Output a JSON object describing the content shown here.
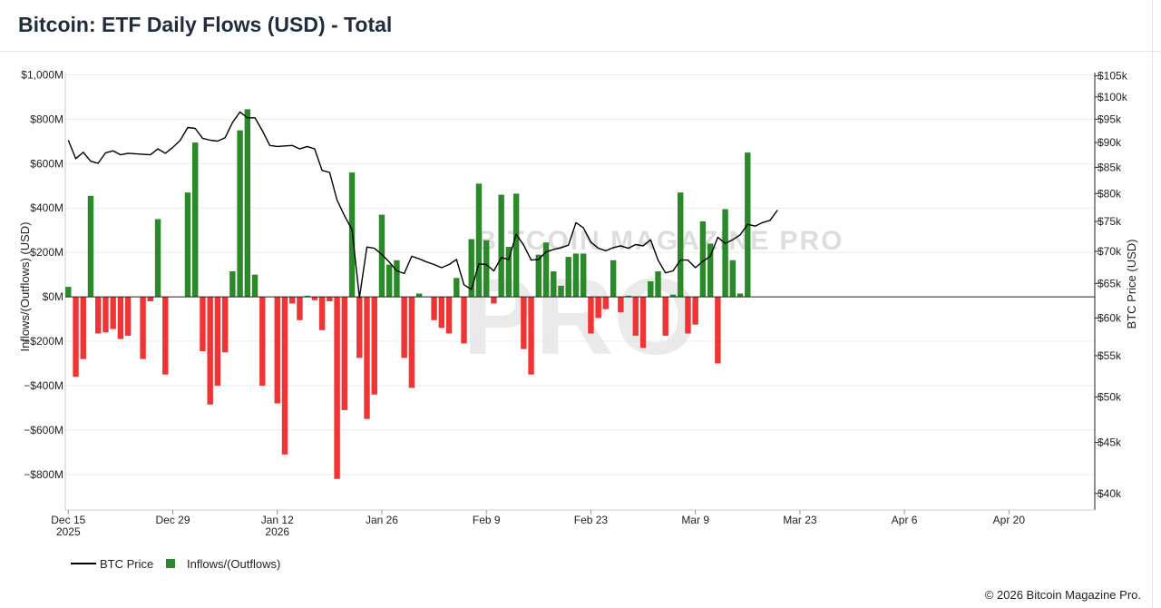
{
  "title": "Bitcoin: ETF Daily Flows (USD) - Total",
  "copyright": "© 2026 Bitcoin Magazine Pro.",
  "watermark": "BITCOIN MAGAZINE PRO",
  "colors": {
    "inflow": "#2a8a2a",
    "outflow": "#ee3434",
    "price": "#000000",
    "grid": "#ebebeb"
  },
  "chart_data": {
    "type": "bar",
    "title": "Bitcoin: ETF Daily Flows (USD) - Total",
    "ylabel": "Inflows/(Outflows) (USD)",
    "y2label": "BTC Price (USD)",
    "ylim": [
      -960,
      1010
    ],
    "y2lim": [
      38500,
      105800
    ],
    "xlim_days": [
      -0.4,
      137.5
    ],
    "yticks": [
      {
        "v": 1000,
        "label": "$1,000M"
      },
      {
        "v": 800,
        "label": "$800M"
      },
      {
        "v": 600,
        "label": "$600M"
      },
      {
        "v": 400,
        "label": "$400M"
      },
      {
        "v": 200,
        "label": "$200M"
      },
      {
        "v": 0,
        "label": "$0M"
      },
      {
        "v": -200,
        "label": "−$200M"
      },
      {
        "v": -400,
        "label": "−$400M"
      },
      {
        "v": -600,
        "label": "−$600M"
      },
      {
        "v": -800,
        "label": "−$800M"
      }
    ],
    "y2ticks": [
      {
        "v": 105000,
        "label": "$105k"
      },
      {
        "v": 100000,
        "label": "$100k"
      },
      {
        "v": 95000,
        "label": "$95k"
      },
      {
        "v": 90000,
        "label": "$90k"
      },
      {
        "v": 85000,
        "label": "$85k"
      },
      {
        "v": 80000,
        "label": "$80k"
      },
      {
        "v": 75000,
        "label": "$75k"
      },
      {
        "v": 70000,
        "label": "$70k"
      },
      {
        "v": 65000,
        "label": "$65k"
      },
      {
        "v": 60000,
        "label": "$60k"
      },
      {
        "v": 55000,
        "label": "$55k"
      },
      {
        "v": 50000,
        "label": "$50k"
      },
      {
        "v": 45000,
        "label": "$45k"
      },
      {
        "v": 40000,
        "label": "$40k"
      }
    ],
    "xticks": [
      {
        "d": 0,
        "line1": "Dec 15",
        "line2": "2025"
      },
      {
        "d": 14,
        "line1": "Dec 29",
        "line2": ""
      },
      {
        "d": 28,
        "line1": "Jan 12",
        "line2": "2026"
      },
      {
        "d": 42,
        "line1": "Jan 26",
        "line2": ""
      },
      {
        "d": 56,
        "line1": "Feb 9",
        "line2": ""
      },
      {
        "d": 70,
        "line1": "Feb 23",
        "line2": ""
      },
      {
        "d": 84,
        "line1": "Mar 9",
        "line2": ""
      },
      {
        "d": 98,
        "line1": "Mar 23",
        "line2": ""
      },
      {
        "d": 112,
        "line1": "Apr 6",
        "line2": ""
      },
      {
        "d": 126,
        "line1": "Apr 20",
        "line2": ""
      }
    ],
    "flows": [
      {
        "d": 0,
        "v": 45
      },
      {
        "d": 1,
        "v": -360
      },
      {
        "d": 2,
        "v": -280
      },
      {
        "d": 3,
        "v": 455
      },
      {
        "d": 4,
        "v": -165
      },
      {
        "d": 5,
        "v": -160
      },
      {
        "d": 6,
        "v": -145
      },
      {
        "d": 7,
        "v": -190
      },
      {
        "d": 8,
        "v": -175
      },
      {
        "d": 10,
        "v": -280
      },
      {
        "d": 11,
        "v": -20
      },
      {
        "d": 12,
        "v": 350
      },
      {
        "d": 13,
        "v": -350
      },
      {
        "d": 16,
        "v": 470
      },
      {
        "d": 17,
        "v": 695
      },
      {
        "d": 18,
        "v": -245
      },
      {
        "d": 19,
        "v": -485
      },
      {
        "d": 20,
        "v": -400
      },
      {
        "d": 21,
        "v": -250
      },
      {
        "d": 22,
        "v": 115
      },
      {
        "d": 23,
        "v": 750
      },
      {
        "d": 24,
        "v": 845
      },
      {
        "d": 25,
        "v": 100
      },
      {
        "d": 26,
        "v": -400
      },
      {
        "d": 28,
        "v": -480
      },
      {
        "d": 29,
        "v": -710
      },
      {
        "d": 30,
        "v": -30
      },
      {
        "d": 31,
        "v": -105
      },
      {
        "d": 32,
        "v": 5
      },
      {
        "d": 33,
        "v": -15
      },
      {
        "d": 34,
        "v": -150
      },
      {
        "d": 35,
        "v": -20
      },
      {
        "d": 36,
        "v": -820
      },
      {
        "d": 37,
        "v": -510
      },
      {
        "d": 38,
        "v": 560
      },
      {
        "d": 39,
        "v": -275
      },
      {
        "d": 40,
        "v": -550
      },
      {
        "d": 41,
        "v": -440
      },
      {
        "d": 42,
        "v": 370
      },
      {
        "d": 43,
        "v": 145
      },
      {
        "d": 44,
        "v": 165
      },
      {
        "d": 45,
        "v": -275
      },
      {
        "d": 46,
        "v": -410
      },
      {
        "d": 47,
        "v": 15
      },
      {
        "d": 49,
        "v": -105
      },
      {
        "d": 50,
        "v": -140
      },
      {
        "d": 51,
        "v": -165
      },
      {
        "d": 52,
        "v": 85
      },
      {
        "d": 53,
        "v": -210
      },
      {
        "d": 54,
        "v": 260
      },
      {
        "d": 55,
        "v": 510
      },
      {
        "d": 56,
        "v": 255
      },
      {
        "d": 57,
        "v": -30
      },
      {
        "d": 58,
        "v": 460
      },
      {
        "d": 59,
        "v": 225
      },
      {
        "d": 60,
        "v": 465
      },
      {
        "d": 61,
        "v": -235
      },
      {
        "d": 62,
        "v": -350
      },
      {
        "d": 63,
        "v": 190
      },
      {
        "d": 64,
        "v": 245
      },
      {
        "d": 65,
        "v": 115
      },
      {
        "d": 66,
        "v": 50
      },
      {
        "d": 67,
        "v": 180
      },
      {
        "d": 68,
        "v": 195
      },
      {
        "d": 69,
        "v": 195
      },
      {
        "d": 70,
        "v": -165
      },
      {
        "d": 71,
        "v": -95
      },
      {
        "d": 72,
        "v": -55
      },
      {
        "d": 73,
        "v": 165
      },
      {
        "d": 74,
        "v": -70
      },
      {
        "d": 75,
        "v": 5
      },
      {
        "d": 76,
        "v": -175
      },
      {
        "d": 77,
        "v": -230
      },
      {
        "d": 78,
        "v": 70
      },
      {
        "d": 79,
        "v": 115
      },
      {
        "d": 80,
        "v": -175
      },
      {
        "d": 81,
        "v": 10
      },
      {
        "d": 82,
        "v": 470
      },
      {
        "d": 83,
        "v": -165
      },
      {
        "d": 84,
        "v": -125
      },
      {
        "d": 85,
        "v": 340
      },
      {
        "d": 86,
        "v": 240
      },
      {
        "d": 87,
        "v": -300
      },
      {
        "d": 88,
        "v": 395
      },
      {
        "d": 89,
        "v": 165
      },
      {
        "d": 90,
        "v": 15
      },
      {
        "d": 91,
        "v": 650
      }
    ],
    "price": [
      {
        "d": 0,
        "p": 90500
      },
      {
        "d": 1,
        "p": 86700
      },
      {
        "d": 2,
        "p": 88000
      },
      {
        "d": 3,
        "p": 86200
      },
      {
        "d": 4,
        "p": 85800
      },
      {
        "d": 5,
        "p": 87900
      },
      {
        "d": 6,
        "p": 88300
      },
      {
        "d": 7,
        "p": 87500
      },
      {
        "d": 8,
        "p": 87800
      },
      {
        "d": 11,
        "p": 87500
      },
      {
        "d": 12,
        "p": 88700
      },
      {
        "d": 13,
        "p": 87800
      },
      {
        "d": 14,
        "p": 89000
      },
      {
        "d": 15,
        "p": 90500
      },
      {
        "d": 16,
        "p": 93200
      },
      {
        "d": 17,
        "p": 93000
      },
      {
        "d": 18,
        "p": 90900
      },
      {
        "d": 19,
        "p": 90500
      },
      {
        "d": 20,
        "p": 90300
      },
      {
        "d": 21,
        "p": 91000
      },
      {
        "d": 22,
        "p": 94300
      },
      {
        "d": 23,
        "p": 96600
      },
      {
        "d": 24,
        "p": 95300
      },
      {
        "d": 25,
        "p": 95300
      },
      {
        "d": 26,
        "p": 92500
      },
      {
        "d": 27,
        "p": 89400
      },
      {
        "d": 28,
        "p": 89200
      },
      {
        "d": 29,
        "p": 89300
      },
      {
        "d": 30,
        "p": 89400
      },
      {
        "d": 31,
        "p": 88700
      },
      {
        "d": 32,
        "p": 89200
      },
      {
        "d": 33,
        "p": 88700
      },
      {
        "d": 34,
        "p": 84400
      },
      {
        "d": 35,
        "p": 84000
      },
      {
        "d": 36,
        "p": 78800
      },
      {
        "d": 37,
        "p": 76000
      },
      {
        "d": 38,
        "p": 73600
      },
      {
        "d": 39,
        "p": 62900
      },
      {
        "d": 40,
        "p": 70700
      },
      {
        "d": 41,
        "p": 70500
      },
      {
        "d": 42,
        "p": 69500
      },
      {
        "d": 43,
        "p": 68300
      },
      {
        "d": 44,
        "p": 66900
      },
      {
        "d": 45,
        "p": 66500
      },
      {
        "d": 46,
        "p": 69200
      },
      {
        "d": 47,
        "p": 68800
      },
      {
        "d": 48,
        "p": 68300
      },
      {
        "d": 49,
        "p": 67900
      },
      {
        "d": 50,
        "p": 67400
      },
      {
        "d": 51,
        "p": 67900
      },
      {
        "d": 52,
        "p": 68700
      },
      {
        "d": 53,
        "p": 64800
      },
      {
        "d": 54,
        "p": 64100
      },
      {
        "d": 55,
        "p": 68000
      },
      {
        "d": 56,
        "p": 67900
      },
      {
        "d": 57,
        "p": 66900
      },
      {
        "d": 58,
        "p": 69000
      },
      {
        "d": 59,
        "p": 68700
      },
      {
        "d": 60,
        "p": 72800
      },
      {
        "d": 61,
        "p": 71000
      },
      {
        "d": 62,
        "p": 68600
      },
      {
        "d": 63,
        "p": 68700
      },
      {
        "d": 64,
        "p": 69900
      },
      {
        "d": 65,
        "p": 70300
      },
      {
        "d": 66,
        "p": 70600
      },
      {
        "d": 67,
        "p": 71000
      },
      {
        "d": 68,
        "p": 74800
      },
      {
        "d": 69,
        "p": 73900
      },
      {
        "d": 70,
        "p": 71500
      },
      {
        "d": 71,
        "p": 70500
      },
      {
        "d": 72,
        "p": 70100
      },
      {
        "d": 73,
        "p": 70600
      },
      {
        "d": 74,
        "p": 70900
      },
      {
        "d": 75,
        "p": 70500
      },
      {
        "d": 76,
        "p": 71100
      },
      {
        "d": 77,
        "p": 70900
      },
      {
        "d": 78,
        "p": 71900
      },
      {
        "d": 79,
        "p": 68600
      },
      {
        "d": 80,
        "p": 66600
      },
      {
        "d": 81,
        "p": 66900
      },
      {
        "d": 82,
        "p": 68600
      },
      {
        "d": 83,
        "p": 68600
      },
      {
        "d": 84,
        "p": 67400
      },
      {
        "d": 85,
        "p": 68400
      },
      {
        "d": 86,
        "p": 69200
      },
      {
        "d": 87,
        "p": 72300
      },
      {
        "d": 88,
        "p": 71300
      },
      {
        "d": 89,
        "p": 71900
      },
      {
        "d": 90,
        "p": 72700
      },
      {
        "d": 91,
        "p": 74500
      },
      {
        "d": 92,
        "p": 74200
      },
      {
        "d": 93,
        "p": 74800
      },
      {
        "d": 94,
        "p": 75200
      },
      {
        "d": 95,
        "p": 77000
      }
    ],
    "legend": {
      "position": "bottom-left",
      "items": [
        {
          "name": "BTC Price",
          "kind": "line"
        },
        {
          "name": "Inflows/(Outflows)",
          "kind": "bar"
        }
      ]
    }
  }
}
